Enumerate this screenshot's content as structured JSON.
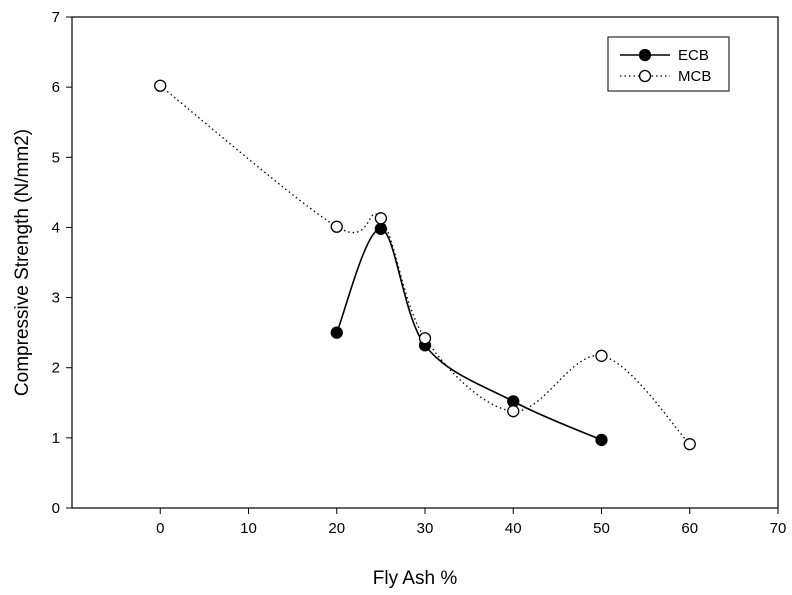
{
  "chart_data": {
    "type": "line",
    "title": "",
    "xlabel": "Fly Ash %",
    "ylabel": "Compressive Strength (N/mm2)",
    "xlim": [
      -10,
      70
    ],
    "ylim": [
      0,
      7
    ],
    "xticks": [
      0,
      10,
      20,
      30,
      40,
      50,
      60,
      70
    ],
    "yticks": [
      0,
      1,
      2,
      3,
      4,
      5,
      6,
      7
    ],
    "grid": false,
    "legend_position": "top-right",
    "series": [
      {
        "name": "ECB",
        "marker": "filled-circle",
        "line_style": "solid",
        "color": "#000000",
        "x": [
          20,
          25,
          30,
          40,
          50
        ],
        "y": [
          2.5,
          3.98,
          2.32,
          1.52,
          0.97
        ]
      },
      {
        "name": "MCB",
        "marker": "open-circle",
        "line_style": "dotted",
        "color": "#000000",
        "x": [
          0,
          20,
          25,
          30,
          40,
          50,
          60
        ],
        "y": [
          6.02,
          4.01,
          4.13,
          2.42,
          1.38,
          2.17,
          0.91
        ]
      }
    ]
  }
}
